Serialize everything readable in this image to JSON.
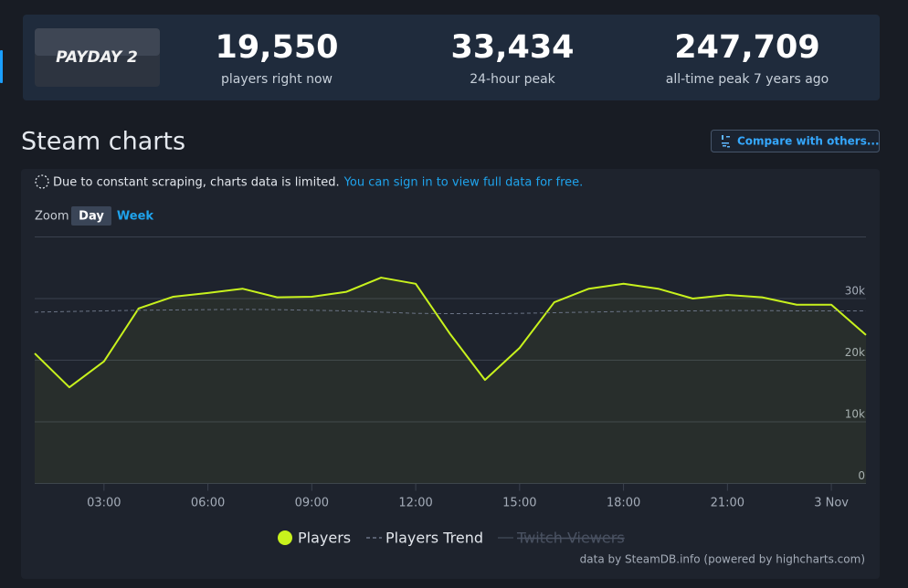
{
  "header": {
    "game": "PAYDAY 2",
    "stats": [
      {
        "value": "19,550",
        "label": "players right now"
      },
      {
        "value": "33,434",
        "label": "24-hour peak"
      },
      {
        "value": "247,709",
        "label": "all-time peak 7 years ago"
      }
    ]
  },
  "section_title": "Steam charts",
  "compare_button": "Compare with others...",
  "notice": {
    "text": "Due to constant scraping, charts data is limited.",
    "link": "You can sign in to view full data for free."
  },
  "zoom": {
    "label": "Zoom",
    "options": [
      "Day",
      "Week"
    ],
    "active": 0
  },
  "chart_data": {
    "type": "line",
    "x": [
      1,
      2,
      3,
      4,
      5,
      6,
      7,
      8,
      9,
      10,
      11,
      12,
      13,
      14,
      15,
      16,
      17,
      18,
      19,
      20,
      21,
      22,
      23,
      24,
      25
    ],
    "xlim": [
      1,
      25
    ],
    "xticks": [
      {
        "value": 3,
        "label": "03:00"
      },
      {
        "value": 6,
        "label": "06:00"
      },
      {
        "value": 9,
        "label": "09:00"
      },
      {
        "value": 12,
        "label": "12:00"
      },
      {
        "value": 15,
        "label": "15:00"
      },
      {
        "value": 18,
        "label": "18:00"
      },
      {
        "value": 21,
        "label": "21:00"
      },
      {
        "value": 24,
        "label": "3 Nov"
      }
    ],
    "ylim": [
      0,
      40000
    ],
    "yticks": [
      0,
      {
        "value": 10000,
        "label": "10k"
      },
      {
        "value": 20000,
        "label": "20k"
      },
      {
        "value": 30000,
        "label": "30k"
      }
    ],
    "grid": true,
    "series": [
      {
        "name": "Players",
        "color": "#c8f21d",
        "area": true,
        "values": [
          21100,
          15600,
          19800,
          28400,
          30300,
          30900,
          31600,
          30200,
          30300,
          31100,
          33400,
          32400,
          24200,
          16800,
          22000,
          29400,
          31600,
          32400,
          31600,
          30000,
          30600,
          30200,
          29000,
          29000,
          24100
        ]
      },
      {
        "name": "Players Trend",
        "color": "#6b7486",
        "dash": true,
        "values": [
          27800,
          27900,
          28000,
          28100,
          28150,
          28200,
          28250,
          28200,
          28100,
          28000,
          27800,
          27600,
          27550,
          27550,
          27600,
          27700,
          27800,
          27900,
          28000,
          28000,
          28050,
          28050,
          28000,
          28000,
          28000
        ]
      },
      {
        "name": "Twitch Viewers",
        "color": "#4a5262",
        "visible": false
      }
    ]
  },
  "credits": "data by SteamDB.info (powered by highcharts.com)"
}
